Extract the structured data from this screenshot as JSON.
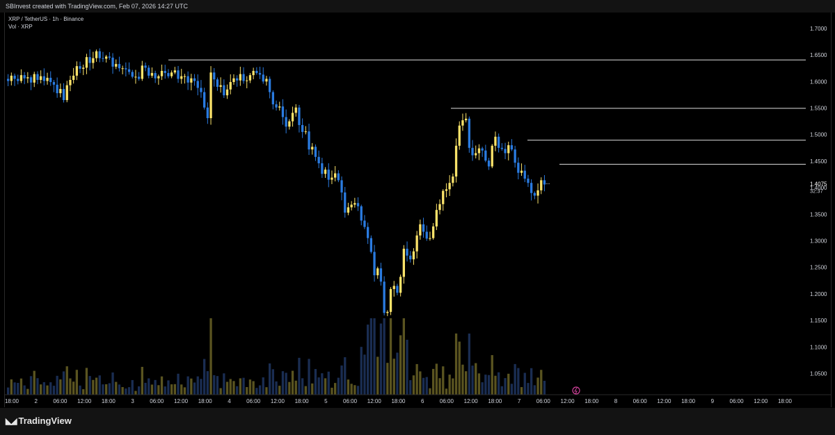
{
  "header": {
    "attribution": "SBInvest created with TradingView.com, Feb 07, 2026 14:27 UTC"
  },
  "legend": {
    "symbol_line": "XRP / TetherUS · 1h · Binance",
    "volume_line": "Vol · XRP"
  },
  "footer": {
    "brand": "TradingView"
  },
  "colors": {
    "up": "#fbe36a",
    "down": "#2a7be0",
    "up_volume": "#5a5420",
    "down_volume": "#1a2d52",
    "background": "#000000",
    "level_line": "#e0e0e0",
    "last_price_label_bg": "#000000"
  },
  "chart_data": {
    "type": "candlestick",
    "title": "XRP / TetherUS · 1h · Binance",
    "y_axis": {
      "scale": "linear",
      "ylim": [
        1.01,
        1.73
      ],
      "ticks": [
        "1.7000",
        "1.6500",
        "1.6000",
        "1.5500",
        "1.5000",
        "1.4500",
        "1.4000",
        "1.3500",
        "1.3000",
        "1.2500",
        "1.2000",
        "1.1500",
        "1.1000",
        "1.0500"
      ]
    },
    "x_axis": {
      "tick_labels": [
        "18:00",
        "2",
        "06:00",
        "12:00",
        "18:00",
        "3",
        "06:00",
        "12:00",
        "18:00",
        "4",
        "06:00",
        "12:00",
        "18:00",
        "5",
        "06:00",
        "12:00",
        "18:00",
        "6",
        "06:00",
        "12:00",
        "18:00",
        "7",
        "06:00",
        "12:00",
        "18:00",
        "8",
        "06:00",
        "12:00",
        "18:00",
        "9",
        "06:00",
        "12:00",
        "18:00"
      ]
    },
    "horizontal_levels": [
      {
        "price": 1.6407,
        "label": "1.6407"
      },
      {
        "price": 1.5495,
        "label": "1.5495"
      },
      {
        "price": 1.4894,
        "label": "1.4894"
      },
      {
        "price": 1.4441,
        "label": "1.4441"
      }
    ],
    "last_price": {
      "value": "1.4075",
      "countdown": "32:37"
    },
    "grid": false,
    "close_series": [
      1.601,
      1.611,
      1.605,
      1.601,
      1.612,
      1.606,
      1.608,
      1.598,
      1.614,
      1.603,
      1.61,
      1.601,
      1.607,
      1.599,
      1.594,
      1.578,
      1.586,
      1.565,
      1.593,
      1.603,
      1.611,
      1.629,
      1.624,
      1.626,
      1.646,
      1.635,
      1.644,
      1.657,
      1.644,
      1.643,
      1.647,
      1.645,
      1.628,
      1.633,
      1.625,
      1.625,
      1.623,
      1.618,
      1.609,
      1.609,
      1.605,
      1.63,
      1.626,
      1.611,
      1.616,
      1.606,
      1.61,
      1.62,
      1.616,
      1.61,
      1.617,
      1.621,
      1.605,
      1.61,
      1.61,
      1.598,
      1.606,
      1.601,
      1.588,
      1.58,
      1.551,
      1.531,
      1.617,
      1.604,
      1.59,
      1.593,
      1.574,
      1.585,
      1.599,
      1.606,
      1.602,
      1.614,
      1.601,
      1.602,
      1.612,
      1.62,
      1.616,
      1.613,
      1.6,
      1.605,
      1.58,
      1.557,
      1.551,
      1.553,
      1.533,
      1.515,
      1.525,
      1.541,
      1.551,
      1.518,
      1.505,
      1.506,
      1.472,
      1.477,
      1.458,
      1.446,
      1.426,
      1.434,
      1.415,
      1.419,
      1.427,
      1.414,
      1.391,
      1.353,
      1.363,
      1.368,
      1.371,
      1.365,
      1.338,
      1.326,
      1.305,
      1.279,
      1.235,
      1.248,
      1.223,
      1.164,
      1.166,
      1.209,
      1.215,
      1.202,
      1.232,
      1.285,
      1.272,
      1.265,
      1.28,
      1.31,
      1.331,
      1.317,
      1.304,
      1.305,
      1.327,
      1.358,
      1.369,
      1.394,
      1.397,
      1.409,
      1.421,
      1.479,
      1.517,
      1.527,
      1.53,
      1.475,
      1.461,
      1.465,
      1.474,
      1.47,
      1.451,
      1.44,
      1.479,
      1.496,
      1.475,
      1.473,
      1.465,
      1.48,
      1.472,
      1.447,
      1.428,
      1.432,
      1.417,
      1.409,
      1.39,
      1.385,
      1.395,
      1.414,
      1.406
    ],
    "volume_note": "relative volume bars per candle, tallest near the Feb 5 18:00 sell-off"
  }
}
